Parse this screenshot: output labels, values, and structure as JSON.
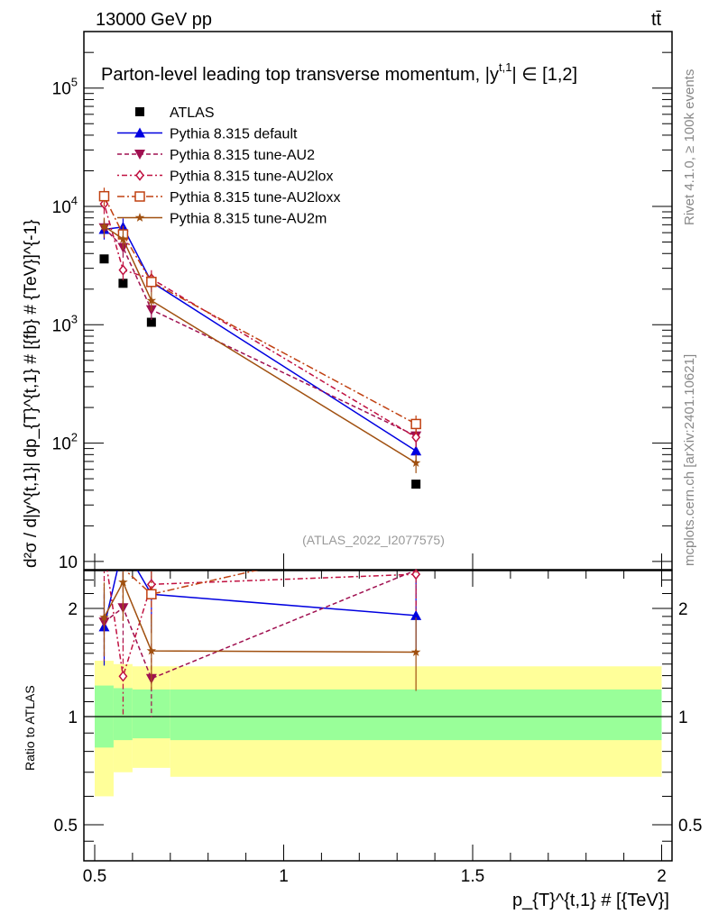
{
  "header": {
    "left": "13000 GeV pp",
    "right": "tt̄"
  },
  "side": {
    "rivet": "Rivet 4.1.0, ≥ 100k events",
    "mcplots": "mcplots.cern.ch [arXiv:2401.10621]"
  },
  "chart_data": {
    "type": "line",
    "title": "Parton-level leading top transverse momentum, |y^{t,1}| ∈ [1,2]",
    "title_main": "Parton-level leading top transverse momentum,",
    "title_y": "|y",
    "title_sup": "t,1",
    "title_range": "| ∈ [1,2]",
    "analysis": "(ATLAS_2022_I2077575)",
    "ylabel": "d²σ / d|y^{t,1}| dp_{T}^{t,1} # [{fb} # {TeV}]^{-1}",
    "ylabel_ratio": "Ratio to ATLAS",
    "xlabel": "p_{T}^{t,1} # [{TeV}]",
    "xlim": [
      0.45,
      2.05
    ],
    "ylim": [
      8.5,
      300000
    ],
    "ylim_ratio": [
      0.4,
      2.55
    ],
    "yscale": "log",
    "x_ticks": [
      "0.5",
      "1",
      "1.5",
      "2"
    ],
    "y_ticks": [
      "10",
      "10^2",
      "10^3",
      "10^4",
      "10^5"
    ],
    "ratio_ticks": [
      "0.5",
      "1",
      "2"
    ],
    "bins": [
      [
        0.5,
        0.55
      ],
      [
        0.55,
        0.6
      ],
      [
        0.6,
        0.7
      ],
      [
        0.7,
        2.0
      ]
    ],
    "x": [
      0.525,
      0.575,
      0.65,
      1.35
    ],
    "legend_position": "top-left",
    "reference_band": {
      "inner": [
        [
          0.82,
          1.22
        ],
        [
          0.86,
          1.2
        ],
        [
          0.87,
          1.19
        ],
        [
          0.86,
          1.19
        ]
      ],
      "outer": [
        [
          0.6,
          1.43
        ],
        [
          0.7,
          1.4
        ],
        [
          0.72,
          1.38
        ],
        [
          0.68,
          1.38
        ]
      ]
    },
    "series": [
      {
        "name": "ATLAS",
        "values": [
          3600,
          2240,
          1050,
          45
        ],
        "color": "#000000",
        "marker": "square",
        "dash": ""
      },
      {
        "name": "Pythia 8.315 default",
        "values": [
          6400,
          6700,
          2300,
          86
        ],
        "color": "#0000e0",
        "marker": "triangle-up",
        "dash": ""
      },
      {
        "name": "Pythia 8.315 tune-AU2",
        "values": [
          6600,
          4500,
          1340,
          115
        ],
        "color": "#a01050",
        "marker": "triangle-down",
        "dash": "5,3"
      },
      {
        "name": "Pythia 8.315 tune-AU2lox",
        "values": [
          10500,
          2900,
          2450,
          112
        ],
        "color": "#c01040",
        "marker": "diamond",
        "dash": "2,3,6,3"
      },
      {
        "name": "Pythia 8.315 tune-AU2loxx",
        "values": [
          12200,
          5800,
          2300,
          145
        ],
        "color": "#c04010",
        "marker": "open-square",
        "dash": "8,3,2,3"
      },
      {
        "name": "Pythia 8.315 tune-AU2m",
        "values": [
          6800,
          5300,
          1600,
          68
        ],
        "color": "#a05010",
        "marker": "star",
        "dash": ""
      }
    ]
  }
}
